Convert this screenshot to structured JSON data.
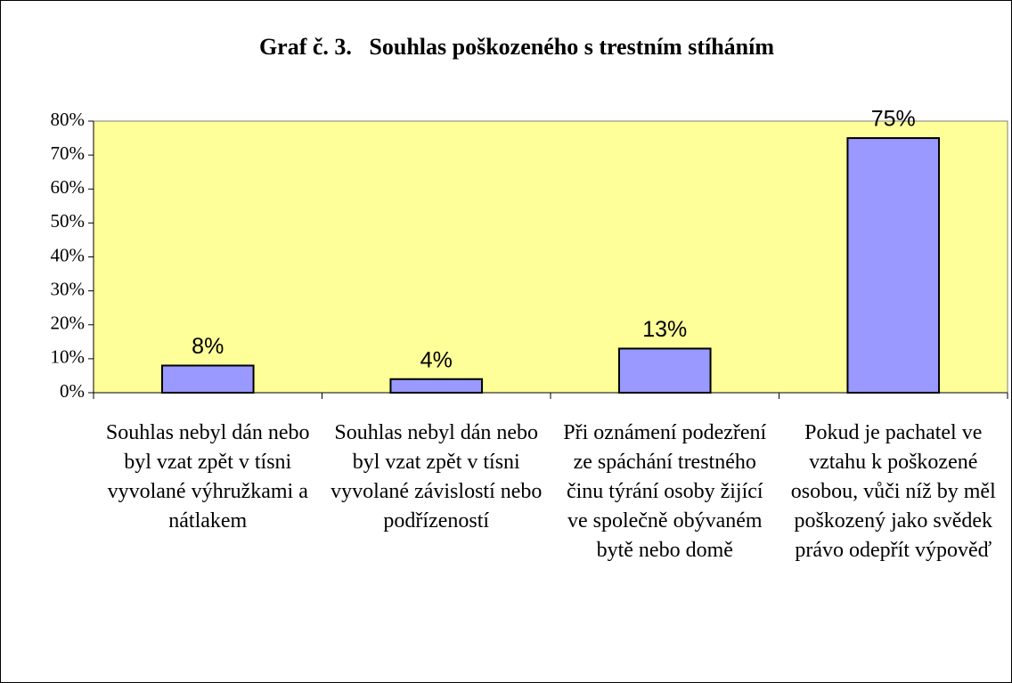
{
  "chart_data": {
    "type": "bar",
    "title": "Graf č. 3.   Souhlas poškozeného s trestním stíháním",
    "categories": [
      "Souhlas nebyl dán nebo byl vzat zpět v tísni vyvolané výhružkami a nátlakem",
      "Souhlas nebyl dán nebo byl vzat zpět v tísni vyvolané závislostí nebo podřízeností",
      "Při oznámení podezření ze spáchání trestného činu týrání osoby žijící ve společně obývaném bytě nebo domě",
      "Pokud je pachatel ve vztahu k poškozené osobou, vůči níž by měl poškozený jako svědek právo odepřít výpověď"
    ],
    "values": [
      8,
      4,
      13,
      75
    ],
    "value_labels": [
      "8%",
      "4%",
      "13%",
      "75%"
    ],
    "color": "#9999ff",
    "plot_background": "#ffff99",
    "ylim": [
      0,
      80
    ],
    "yticks": [
      {
        "value": 0,
        "label": "0%"
      },
      {
        "value": 10,
        "label": "10%"
      },
      {
        "value": 20,
        "label": "20%"
      },
      {
        "value": 30,
        "label": "30%"
      },
      {
        "value": 40,
        "label": "40%"
      },
      {
        "value": 50,
        "label": "50%"
      },
      {
        "value": 60,
        "label": "60%"
      },
      {
        "value": 70,
        "label": "70%"
      },
      {
        "value": 80,
        "label": "80%"
      }
    ],
    "grid": false
  }
}
